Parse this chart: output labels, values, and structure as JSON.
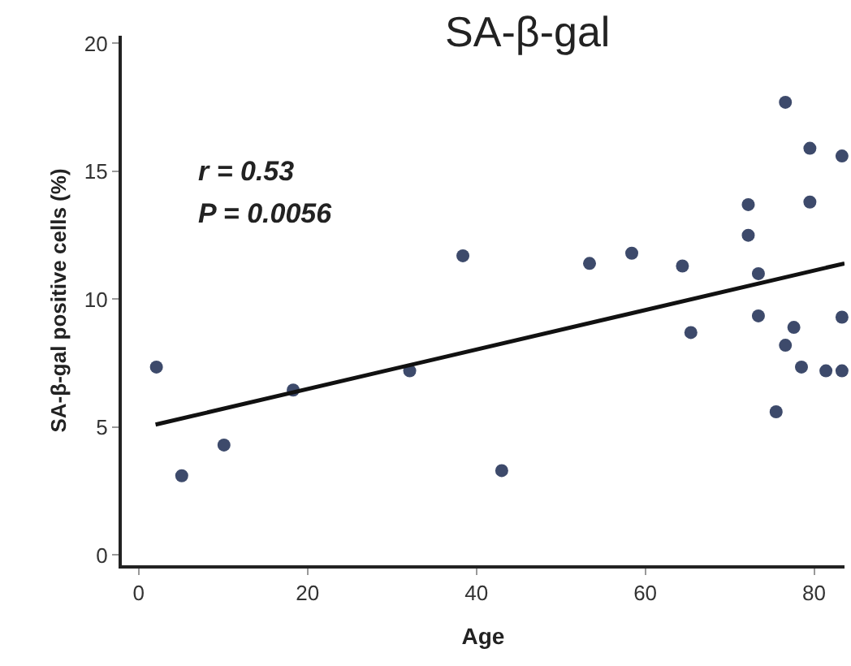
{
  "chart_data": {
    "type": "scatter",
    "title": "SA-β-gal",
    "xlabel": "Age",
    "ylabel": "SA-β-gal positive cells (%)",
    "annotations": [
      "r = 0.53",
      "P = 0.0056"
    ],
    "series": [
      {
        "color": "#3d4a6b",
        "marker": "circle",
        "x": [
          2.1,
          5.1,
          10.1,
          18.3,
          32.1,
          38.4,
          43,
          53.4,
          58.4,
          64.4,
          65.4,
          72.2,
          72.2,
          73.4,
          73.4,
          76.6,
          77.6,
          76.6,
          78.5,
          75.5,
          79.5,
          79.5,
          81.4,
          83.3,
          83.3,
          83.3
        ],
        "values": [
          7.35,
          3.1,
          4.3,
          6.45,
          7.2,
          11.7,
          3.3,
          11.4,
          11.8,
          11.3,
          8.7,
          13.7,
          12.5,
          11.0,
          9.35,
          17.7,
          8.9,
          8.2,
          7.35,
          5.6,
          15.9,
          13.8,
          7.2,
          15.6,
          9.3,
          7.2
        ]
      },
      {
        "type": "line",
        "color": "#111111",
        "x": [
          2,
          83.6
        ],
        "values": [
          5.1,
          11.4
        ]
      }
    ],
    "xlim": [
      -2,
      83.6
    ],
    "ylim": [
      -0.4,
      20.3
    ],
    "xticks": [
      0,
      20,
      40,
      60,
      80
    ],
    "yticks": [
      0,
      5,
      10,
      15,
      20
    ]
  }
}
